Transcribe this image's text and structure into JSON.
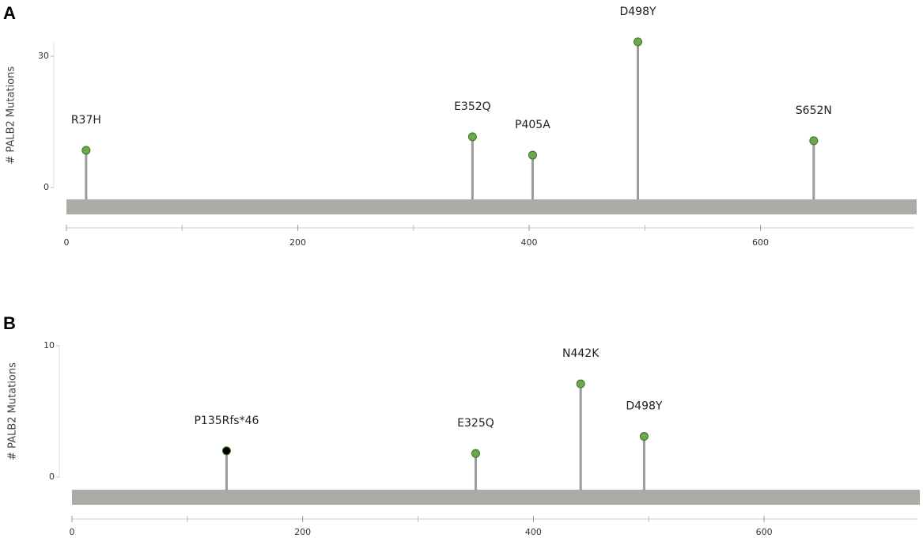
{
  "chart_data": [
    {
      "type": "lollipop",
      "panel": "A",
      "y_label": "# PALB2 Mutations",
      "categories": [
        "R37H",
        "E352Q",
        "P405A",
        "D498Y",
        "S652N"
      ],
      "x": [
        17,
        351,
        403,
        494,
        646
      ],
      "values": [
        8.5,
        11.6,
        7.4,
        33.3,
        10.7
      ],
      "colors": [
        "#6aaa4a",
        "#6aaa4a",
        "#6aaa4a",
        "#6aaa4a",
        "#6aaa4a"
      ],
      "xlim": [
        0,
        735
      ],
      "ylim": [
        0,
        33
      ],
      "xticks": [
        0,
        200,
        400,
        600
      ],
      "yticks": [
        0,
        30
      ]
    },
    {
      "type": "lollipop",
      "panel": "B",
      "y_label": "# PALB2 Mutations",
      "categories": [
        "P135Rfs*46",
        "E325Q",
        "N442K",
        "D498Y"
      ],
      "x": [
        134,
        350,
        441,
        496
      ],
      "values": [
        2.0,
        1.8,
        7.1,
        3.1
      ],
      "colors": [
        "#000000",
        "#6aaa4a",
        "#6aaa4a",
        "#6aaa4a"
      ],
      "xlim": [
        0,
        735
      ],
      "ylim": [
        0,
        10
      ],
      "xticks": [
        0,
        200,
        400,
        600
      ],
      "yticks": [
        0,
        10
      ]
    }
  ]
}
